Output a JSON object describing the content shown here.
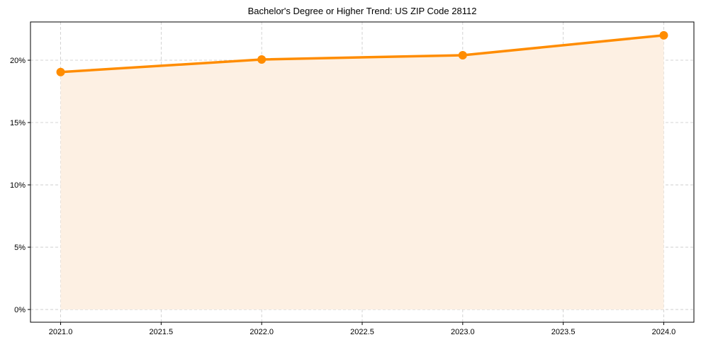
{
  "chart_data": {
    "type": "line",
    "title": "Bachelor's Degree or Higher Trend: US ZIP Code 28112",
    "xlabel": "",
    "ylabel": "",
    "x": [
      2021,
      2022,
      2023,
      2024
    ],
    "series": [
      {
        "name": "Bachelor's Degree or Higher",
        "values": [
          19.05,
          20.06,
          20.4,
          22.0
        ],
        "color": "#ff8c00",
        "fill": "#fdf0e3"
      }
    ],
    "xlim": [
      2020.85,
      2024.15
    ],
    "ylim": [
      -1.02,
      23.07
    ],
    "xticks": [
      2021.0,
      2021.5,
      2022.0,
      2022.5,
      2023.0,
      2023.5,
      2024.0
    ],
    "xtick_labels": [
      "2021.0",
      "2021.5",
      "2022.0",
      "2022.5",
      "2023.0",
      "2023.5",
      "2024.0"
    ],
    "yticks": [
      0,
      5,
      10,
      15,
      20
    ],
    "ytick_labels": [
      "0%",
      "5%",
      "10%",
      "15%",
      "20%"
    ],
    "grid": true
  }
}
